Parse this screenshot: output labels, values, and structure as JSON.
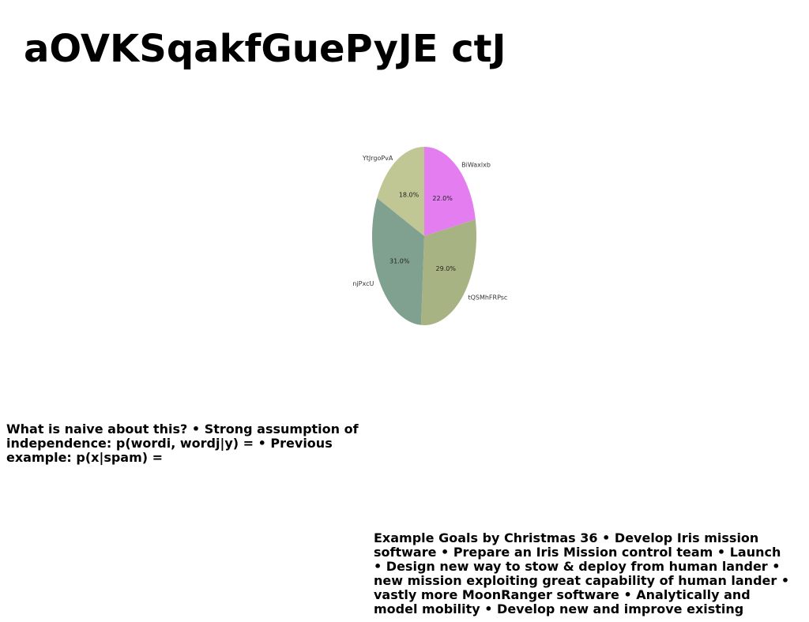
{
  "page": {
    "title": "aOVKSqakfGuePyJE ctJ"
  },
  "chart_data": {
    "type": "pie",
    "categories": [
      "BiWaxlxb",
      "tQSMhFRPsc",
      "njPxcU",
      "YtJrgoPvA"
    ],
    "values": [
      22.0,
      29.0,
      31.0,
      18.0
    ],
    "percent_labels": [
      "22.0%",
      "29.0%",
      "31.0%",
      "18.0%"
    ],
    "colors": [
      "#e47ef0",
      "#a8b383",
      "#80a090",
      "#c0c795"
    ],
    "start": "top",
    "direction": "clockwise"
  },
  "text_blocks": {
    "left": "What is naive about this? • Strong assumption of independence: p(wordi, wordj|y) = • Previous example: p(x|spam) =",
    "right": "Example Goals by Christmas 36 • Develop Iris mission software • Prepare an Iris Mission control team • Launch • Design new way to stow & deploy from human lander • new mission exploiting great capability of human lander • vastly more MoonRanger software • Analytically and model mobility • Develop new and improve existing"
  }
}
